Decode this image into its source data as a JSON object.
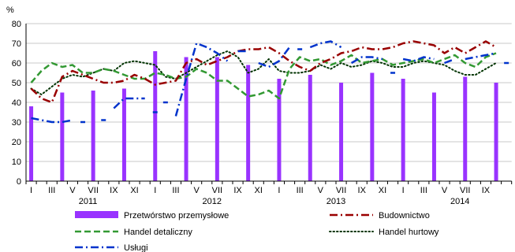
{
  "chart_data": {
    "type": "bar+line",
    "y_unit_label": "%",
    "ylim": [
      0,
      80
    ],
    "y_ticks": [
      0,
      10,
      20,
      30,
      40,
      50,
      60,
      70,
      80
    ],
    "grid": "horizontal",
    "month_tick_labels": [
      "I",
      "III",
      "V",
      "VII",
      "IX",
      "XI",
      "I",
      "III",
      "V",
      "VII",
      "IX",
      "XI",
      "I",
      "III",
      "V",
      "VII",
      "IX",
      "XI",
      "I",
      "III",
      "V",
      "VII",
      "IX"
    ],
    "years": [
      "2011",
      "2012",
      "2013",
      "2014"
    ],
    "legend_placement": "bottom",
    "series": [
      {
        "name": "Przetwórstwo przemysłowe",
        "kind": "bar",
        "color": "#9933ff",
        "points": [
          [
            1,
            38
          ],
          [
            4,
            45
          ],
          [
            7,
            46
          ],
          [
            10,
            47
          ],
          [
            13,
            66
          ],
          [
            16,
            63
          ],
          [
            19,
            63
          ],
          [
            22,
            59
          ],
          [
            25,
            52
          ],
          [
            28,
            54
          ],
          [
            31,
            50
          ],
          [
            34,
            55
          ],
          [
            37,
            52
          ],
          [
            40,
            45
          ],
          [
            43,
            53
          ],
          [
            46,
            50
          ]
        ]
      },
      {
        "name": "Budownictwo",
        "kind": "line",
        "style": "dash-dot",
        "color": "#990000",
        "segments": [
          [
            [
              1,
              47
            ],
            [
              2,
              42
            ],
            [
              3,
              40
            ],
            [
              4,
              53
            ],
            [
              5,
              56
            ],
            [
              6,
              54
            ],
            [
              7,
              52
            ],
            [
              8,
              50
            ],
            [
              9,
              50
            ],
            [
              10,
              51
            ],
            [
              11,
              54
            ],
            [
              12,
              52
            ],
            [
              13,
              49
            ],
            [
              14,
              50
            ],
            [
              15,
              51
            ],
            [
              16,
              60
            ],
            [
              17,
              62
            ],
            [
              18,
              59
            ],
            [
              19,
              61
            ],
            [
              20,
              63
            ],
            [
              21,
              66
            ],
            [
              22,
              67
            ],
            [
              23,
              67
            ],
            [
              24,
              68
            ],
            [
              25,
              65
            ],
            [
              26,
              61
            ],
            [
              27,
              58
            ],
            [
              28,
              56
            ],
            [
              29,
              60
            ],
            [
              30,
              62
            ],
            [
              31,
              65
            ],
            [
              32,
              66
            ],
            [
              33,
              68
            ],
            [
              34,
              67
            ],
            [
              35,
              67
            ],
            [
              36,
              68
            ],
            [
              37,
              70
            ],
            [
              38,
              71
            ],
            [
              39,
              70
            ],
            [
              40,
              69
            ],
            [
              41,
              65
            ],
            [
              42,
              68
            ],
            [
              43,
              65
            ],
            [
              44,
              68
            ],
            [
              45,
              71
            ],
            [
              46,
              68
            ]
          ]
        ]
      },
      {
        "name": "Handel detaliczny",
        "kind": "line",
        "style": "dashed",
        "color": "#339933",
        "segments": [
          [
            [
              1,
              50
            ],
            [
              2,
              56
            ],
            [
              3,
              60
            ],
            [
              4,
              58
            ],
            [
              5,
              59
            ],
            [
              6,
              55
            ],
            [
              7,
              55
            ],
            [
              8,
              57
            ],
            [
              9,
              56
            ],
            [
              10,
              54
            ],
            [
              11,
              52
            ],
            [
              12,
              52
            ],
            [
              13,
              55
            ],
            [
              14,
              54
            ],
            [
              15,
              52
            ],
            [
              16,
              53
            ],
            [
              17,
              57
            ],
            [
              18,
              55
            ],
            [
              19,
              51
            ],
            [
              20,
              51
            ],
            [
              21,
              47
            ],
            [
              22,
              43
            ],
            [
              23,
              44
            ],
            [
              24,
              46
            ],
            [
              25,
              42
            ],
            [
              26,
              57
            ],
            [
              27,
              63
            ],
            [
              28,
              61
            ],
            [
              29,
              62
            ],
            [
              30,
              59
            ],
            [
              31,
              61
            ],
            [
              32,
              64
            ],
            [
              33,
              60
            ],
            [
              34,
              61
            ],
            [
              35,
              62
            ],
            [
              36,
              59
            ],
            [
              37,
              60
            ],
            [
              38,
              61
            ],
            [
              39,
              62
            ],
            [
              40,
              60
            ],
            [
              41,
              62
            ],
            [
              42,
              64
            ],
            [
              43,
              60
            ],
            [
              44,
              58
            ],
            [
              45,
              63
            ],
            [
              46,
              65
            ]
          ]
        ]
      },
      {
        "name": "Handel hurtowy",
        "kind": "line",
        "style": "dotted",
        "color": "#003300",
        "segments": [
          [
            [
              1,
              47
            ],
            [
              2,
              44
            ],
            [
              3,
              48
            ],
            [
              4,
              52
            ],
            [
              5,
              54
            ],
            [
              6,
              53
            ],
            [
              7,
              55
            ],
            [
              8,
              57
            ],
            [
              9,
              56
            ],
            [
              10,
              60
            ],
            [
              11,
              61
            ],
            [
              12,
              60
            ],
            [
              13,
              59
            ],
            [
              14,
              53
            ],
            [
              15,
              52
            ],
            [
              16,
              55
            ],
            [
              17,
              58
            ],
            [
              18,
              61
            ],
            [
              19,
              64
            ],
            [
              20,
              66
            ],
            [
              21,
              63
            ],
            [
              22,
              55
            ],
            [
              23,
              57
            ],
            [
              24,
              62
            ],
            [
              25,
              56
            ],
            [
              26,
              55
            ],
            [
              27,
              55
            ],
            [
              28,
              56
            ],
            [
              29,
              59
            ],
            [
              30,
              57
            ],
            [
              31,
              60
            ],
            [
              32,
              58
            ],
            [
              33,
              59
            ],
            [
              34,
              61
            ],
            [
              35,
              60
            ],
            [
              36,
              58
            ],
            [
              37,
              58
            ],
            [
              38,
              60
            ],
            [
              39,
              61
            ],
            [
              40,
              60
            ],
            [
              41,
              59
            ],
            [
              42,
              56
            ],
            [
              43,
              54
            ],
            [
              44,
              54
            ],
            [
              45,
              57
            ],
            [
              46,
              60
            ]
          ]
        ]
      },
      {
        "name": "Usługi",
        "kind": "line",
        "style": "dash-dot",
        "color": "#0033cc",
        "segments": [
          [
            [
              1,
              32
            ],
            [
              2,
              31
            ],
            [
              3,
              30
            ],
            [
              4,
              30
            ],
            [
              5,
              31
            ]
          ],
          [
            [
              6,
              30
            ]
          ],
          [
            [
              8,
              31
            ]
          ],
          [
            [
              9,
              37
            ],
            [
              10,
              42
            ],
            [
              11,
              42
            ],
            [
              12,
              42
            ]
          ],
          [
            [
              13,
              35
            ]
          ],
          [
            [
              14,
              40
            ]
          ],
          [
            [
              15,
              33
            ],
            [
              16,
              52
            ],
            [
              17,
              70
            ],
            [
              18,
              68
            ],
            [
              19,
              65
            ],
            [
              20,
              61
            ]
          ],
          [
            [
              21,
              66
            ],
            [
              22,
              66
            ]
          ],
          [
            [
              23,
              60
            ],
            [
              24,
              58
            ],
            [
              25,
              61
            ],
            [
              26,
              68
            ]
          ],
          [
            [
              27,
              67
            ]
          ],
          [
            [
              28,
              68
            ],
            [
              29,
              70
            ],
            [
              30,
              71
            ],
            [
              31,
              68
            ]
          ],
          [
            [
              32,
              60
            ],
            [
              33,
              63
            ],
            [
              34,
              63
            ],
            [
              35,
              62
            ]
          ],
          [
            [
              36,
              55
            ]
          ],
          [
            [
              37,
              62
            ],
            [
              38,
              61
            ],
            [
              39,
              63
            ],
            [
              40,
              62
            ]
          ],
          [
            [
              41,
              60
            ],
            [
              42,
              62
            ]
          ],
          [
            [
              43,
              62
            ],
            [
              44,
              63
            ],
            [
              45,
              64
            ],
            [
              46,
              65
            ]
          ],
          [
            [
              47,
              60
            ]
          ]
        ]
      }
    ]
  }
}
